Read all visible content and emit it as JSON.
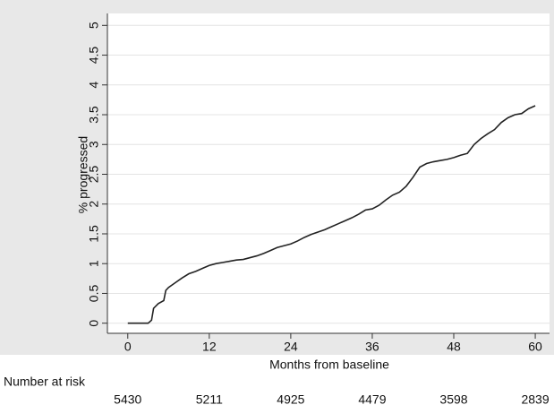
{
  "chart_data": {
    "type": "line",
    "step": true,
    "x_label": "Months from baseline",
    "y_label": "% progressed",
    "x": [
      0,
      3,
      3.5,
      3.8,
      4.5,
      5.3,
      5.6,
      6,
      7,
      8,
      9,
      10,
      11,
      12,
      13,
      14,
      15,
      16,
      17,
      18,
      19,
      20,
      21,
      22,
      23,
      24,
      25,
      26,
      27,
      28,
      29,
      30,
      31,
      32,
      33,
      34,
      35,
      36,
      37,
      38,
      39,
      40,
      41,
      42,
      43,
      44,
      45,
      46,
      47,
      48,
      49,
      50,
      51,
      52,
      53,
      54,
      55,
      56,
      57,
      58,
      59,
      60
    ],
    "series": [
      {
        "color": "#222222",
        "values": [
          0,
          0,
          0.05,
          0.25,
          0.33,
          0.38,
          0.55,
          0.6,
          0.68,
          0.76,
          0.83,
          0.87,
          0.92,
          0.97,
          1.0,
          1.02,
          1.04,
          1.06,
          1.07,
          1.1,
          1.13,
          1.17,
          1.22,
          1.27,
          1.3,
          1.33,
          1.38,
          1.44,
          1.49,
          1.53,
          1.57,
          1.62,
          1.67,
          1.72,
          1.77,
          1.83,
          1.9,
          1.92,
          1.98,
          2.07,
          2.15,
          2.2,
          2.3,
          2.45,
          2.62,
          2.68,
          2.71,
          2.73,
          2.75,
          2.78,
          2.82,
          2.85,
          3.0,
          3.1,
          3.18,
          3.25,
          3.37,
          3.45,
          3.5,
          3.52,
          3.6,
          3.65
        ]
      }
    ],
    "xlim": [
      -3,
      62.1
    ],
    "xticks": [
      0,
      12,
      24,
      36,
      48,
      60
    ],
    "ylim": [
      -0.17,
      5.2
    ],
    "yticks": [
      0,
      0.5,
      1,
      1.5,
      2,
      2.5,
      3,
      3.5,
      4,
      4.5,
      5
    ],
    "grid": true,
    "risk_label": "Number at risk",
    "number_at_risk": [
      5430,
      5211,
      4925,
      4479,
      3598,
      2839
    ]
  }
}
